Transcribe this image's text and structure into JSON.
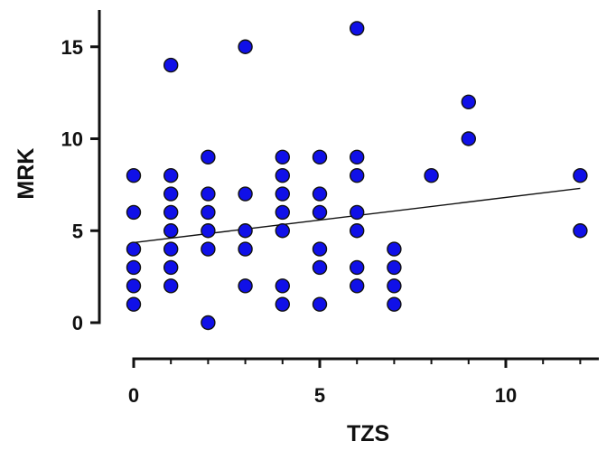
{
  "chart_data": {
    "type": "scatter",
    "xlabel": "TZS",
    "ylabel": "MRK",
    "xlim": [
      0,
      12.5
    ],
    "ylim": [
      0,
      17
    ],
    "x_ticks": [
      "0",
      "5",
      "10"
    ],
    "y_ticks": [
      "0",
      "5",
      "10",
      "15"
    ],
    "grid": false,
    "legend": "none",
    "point_color": "#1010e8",
    "points": [
      {
        "x": 0,
        "y": 8
      },
      {
        "x": 0,
        "y": 6
      },
      {
        "x": 0,
        "y": 4
      },
      {
        "x": 0,
        "y": 3
      },
      {
        "x": 0,
        "y": 2
      },
      {
        "x": 0,
        "y": 1
      },
      {
        "x": 1,
        "y": 14
      },
      {
        "x": 1,
        "y": 8
      },
      {
        "x": 1,
        "y": 7
      },
      {
        "x": 1,
        "y": 6
      },
      {
        "x": 1,
        "y": 5
      },
      {
        "x": 1,
        "y": 4
      },
      {
        "x": 1,
        "y": 3
      },
      {
        "x": 1,
        "y": 2
      },
      {
        "x": 2,
        "y": 9
      },
      {
        "x": 2,
        "y": 7
      },
      {
        "x": 2,
        "y": 6
      },
      {
        "x": 2,
        "y": 5
      },
      {
        "x": 2,
        "y": 4
      },
      {
        "x": 2,
        "y": 0
      },
      {
        "x": 3,
        "y": 15
      },
      {
        "x": 3,
        "y": 7
      },
      {
        "x": 3,
        "y": 5
      },
      {
        "x": 3,
        "y": 4
      },
      {
        "x": 3,
        "y": 2
      },
      {
        "x": 4,
        "y": 9
      },
      {
        "x": 4,
        "y": 8
      },
      {
        "x": 4,
        "y": 7
      },
      {
        "x": 4,
        "y": 6
      },
      {
        "x": 4,
        "y": 5
      },
      {
        "x": 4,
        "y": 2
      },
      {
        "x": 4,
        "y": 1
      },
      {
        "x": 5,
        "y": 9
      },
      {
        "x": 5,
        "y": 7
      },
      {
        "x": 5,
        "y": 6
      },
      {
        "x": 5,
        "y": 4
      },
      {
        "x": 5,
        "y": 3
      },
      {
        "x": 5,
        "y": 1
      },
      {
        "x": 6,
        "y": 16
      },
      {
        "x": 6,
        "y": 9
      },
      {
        "x": 6,
        "y": 8
      },
      {
        "x": 6,
        "y": 6
      },
      {
        "x": 6,
        "y": 5
      },
      {
        "x": 6,
        "y": 3
      },
      {
        "x": 6,
        "y": 2
      },
      {
        "x": 7,
        "y": 4
      },
      {
        "x": 7,
        "y": 3
      },
      {
        "x": 7,
        "y": 2
      },
      {
        "x": 7,
        "y": 1
      },
      {
        "x": 8,
        "y": 8
      },
      {
        "x": 9,
        "y": 12
      },
      {
        "x": 9,
        "y": 10
      },
      {
        "x": 12,
        "y": 8
      },
      {
        "x": 12,
        "y": 5
      }
    ],
    "trendline": {
      "x": [
        0,
        12
      ],
      "y": [
        4.35,
        7.3
      ]
    }
  }
}
